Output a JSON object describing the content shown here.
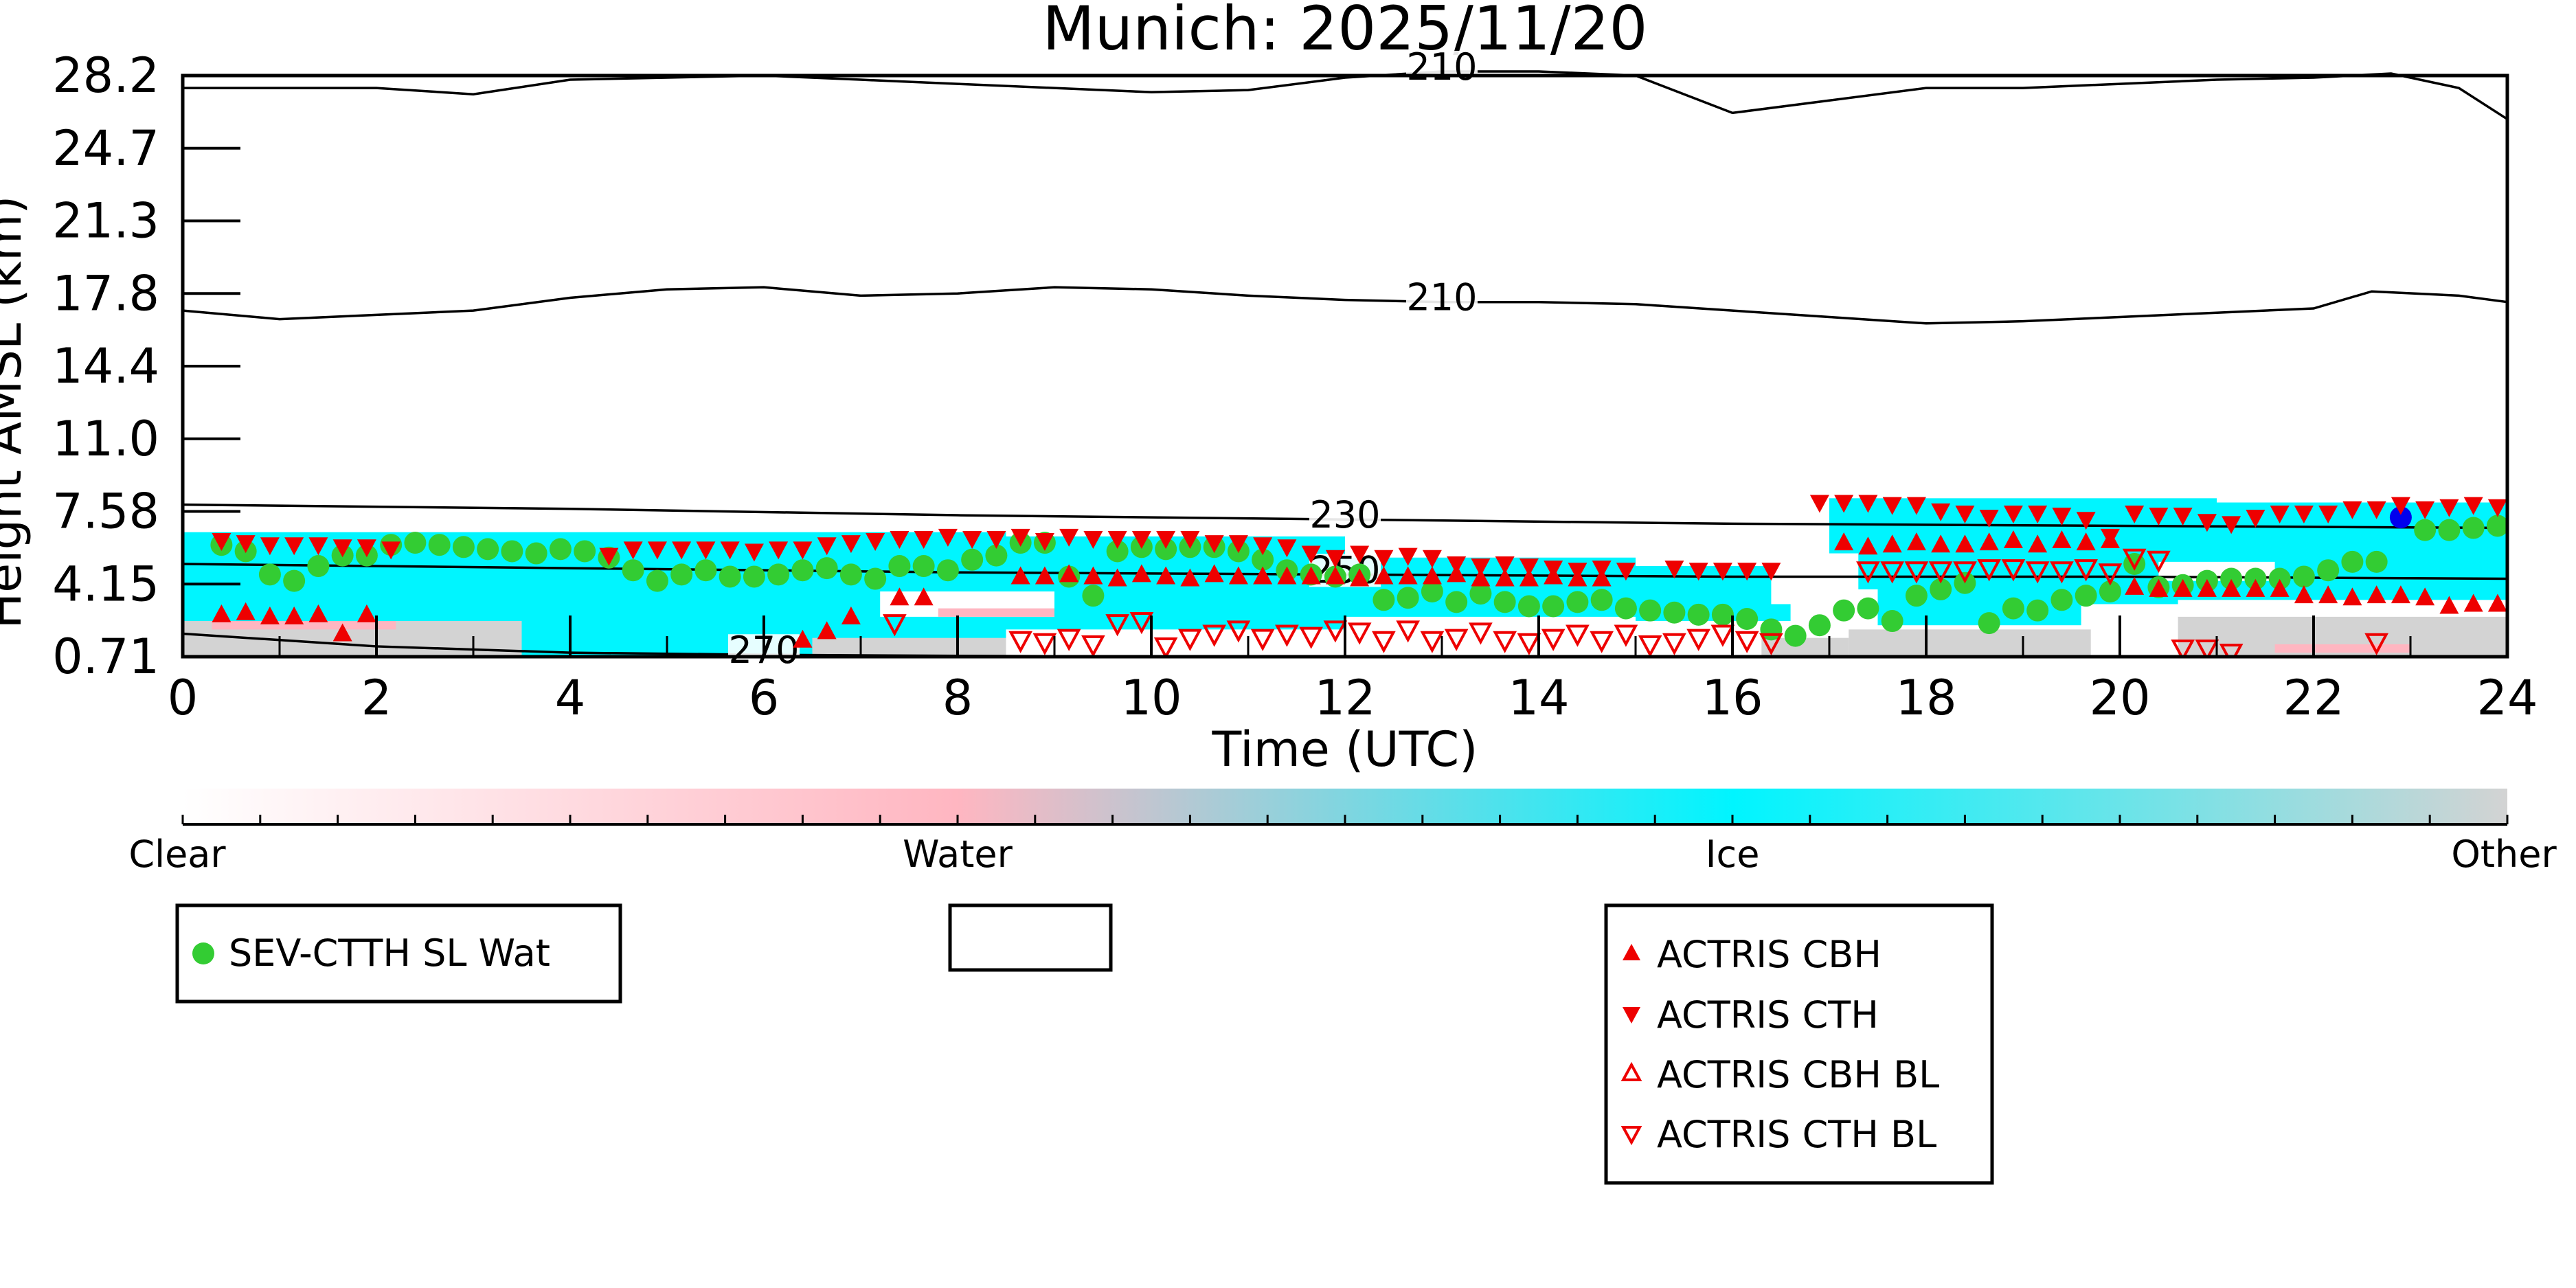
{
  "chart_data": {
    "type": "scatter",
    "title": "Munich: 2025/11/20",
    "xlabel": "Time (UTC)",
    "ylabel": "Height AMSL (km)",
    "xlim": [
      0,
      24
    ],
    "ylim": [
      0.71,
      28.2
    ],
    "x_ticks": [
      "0",
      "2",
      "4",
      "6",
      "8",
      "10",
      "12",
      "14",
      "16",
      "18",
      "20",
      "22",
      "24"
    ],
    "y_ticks": [
      "0.71",
      "4.15",
      "7.58",
      "11.0",
      "14.4",
      "17.8",
      "21.3",
      "24.7",
      "28.2"
    ],
    "y_tick_values": [
      0.71,
      4.15,
      7.58,
      11.0,
      14.4,
      17.8,
      21.3,
      24.7,
      28.2
    ],
    "colorbar": {
      "labels": [
        "Clear",
        "Water",
        "Ice",
        "Other"
      ],
      "colors": [
        "#ffffff",
        "#ffb6c1",
        "#00f5ff",
        "#d3d3d3"
      ]
    },
    "contours": [
      {
        "label": "210",
        "x": [
          0,
          1,
          2,
          3,
          4,
          5,
          6,
          7,
          8,
          9,
          10,
          11,
          12,
          13,
          14,
          15,
          16,
          17,
          18,
          19,
          20,
          21,
          22,
          22.8,
          23.5,
          24
        ],
        "y": [
          27.6,
          27.6,
          27.6,
          27.3,
          28.0,
          28.1,
          28.2,
          28.0,
          27.8,
          27.6,
          27.4,
          27.5,
          28.1,
          28.4,
          28.4,
          28.2,
          26.4,
          27.0,
          27.6,
          27.6,
          27.8,
          28.0,
          28.1,
          28.3,
          27.6,
          26.1
        ]
      },
      {
        "label": "210",
        "x": [
          0,
          1,
          2,
          3,
          4,
          5,
          6,
          7,
          8,
          9,
          10,
          11,
          12,
          13,
          14,
          15,
          16,
          17,
          18,
          19,
          20,
          21,
          22,
          22.6,
          23.5,
          24
        ],
        "y": [
          17.0,
          16.6,
          16.8,
          17.0,
          17.6,
          18.0,
          18.1,
          17.7,
          17.8,
          18.1,
          18.0,
          17.7,
          17.5,
          17.4,
          17.4,
          17.3,
          17.0,
          16.7,
          16.4,
          16.5,
          16.7,
          16.9,
          17.1,
          17.9,
          17.7,
          17.4
        ]
      },
      {
        "label": "230",
        "x": [
          0,
          4,
          8,
          12,
          16,
          20,
          24
        ],
        "y": [
          7.9,
          7.7,
          7.4,
          7.2,
          7.0,
          6.9,
          6.8
        ]
      },
      {
        "label": "250",
        "x": [
          0,
          4,
          8,
          12,
          16,
          20,
          24
        ],
        "y": [
          5.1,
          4.9,
          4.7,
          4.6,
          4.5,
          4.5,
          4.4
        ]
      },
      {
        "label": "270",
        "x": [
          0,
          2,
          4,
          6,
          8,
          10
        ],
        "y": [
          1.8,
          1.2,
          0.9,
          0.8,
          0.75,
          0.72
        ]
      }
    ],
    "series": [
      {
        "name": "SEV-CTTH SL Wat",
        "marker": "circle",
        "color": "#33cc33",
        "x": [
          0.4,
          0.65,
          0.9,
          1.15,
          1.4,
          1.65,
          1.9,
          2.15,
          2.4,
          2.65,
          2.9,
          3.15,
          3.4,
          3.65,
          3.9,
          4.15,
          4.4,
          4.65,
          4.9,
          5.15,
          5.4,
          5.65,
          5.9,
          6.15,
          6.4,
          6.65,
          6.9,
          7.15,
          7.4,
          7.65,
          7.9,
          8.15,
          8.4,
          8.65,
          8.9,
          9.15,
          9.4,
          9.65,
          9.9,
          10.15,
          10.4,
          10.65,
          10.9,
          11.15,
          11.4,
          11.65,
          11.9,
          12.15,
          12.4,
          12.65,
          12.9,
          13.15,
          13.4,
          13.65,
          13.9,
          14.15,
          14.4,
          14.65,
          14.9,
          15.15,
          15.4,
          15.65,
          15.9,
          16.15,
          16.4,
          16.65,
          16.9,
          17.15,
          17.4,
          17.65,
          17.9,
          18.15,
          18.4,
          18.65,
          18.9,
          19.15,
          19.4,
          19.65,
          19.9,
          20.15,
          20.4,
          20.65,
          20.9,
          21.15,
          21.4,
          21.65,
          21.9,
          22.15,
          22.4,
          22.65,
          23.15,
          23.4,
          23.65,
          23.9
        ],
        "y": [
          6.0,
          5.7,
          4.6,
          4.3,
          5.0,
          5.5,
          5.5,
          6.0,
          6.1,
          6.0,
          5.9,
          5.8,
          5.7,
          5.6,
          5.8,
          5.7,
          5.4,
          4.8,
          4.3,
          4.6,
          4.8,
          4.5,
          4.5,
          4.6,
          4.8,
          4.9,
          4.6,
          4.4,
          5.0,
          5.0,
          4.8,
          5.3,
          5.5,
          6.1,
          6.1,
          4.5,
          3.6,
          5.7,
          5.9,
          5.8,
          5.9,
          5.9,
          5.7,
          5.3,
          4.8,
          4.6,
          4.5,
          4.6,
          3.4,
          3.5,
          3.8,
          3.3,
          3.7,
          3.3,
          3.1,
          3.1,
          3.3,
          3.4,
          3.0,
          2.9,
          2.8,
          2.7,
          2.7,
          2.5,
          2.0,
          1.7,
          2.2,
          2.9,
          3.0,
          2.4,
          3.6,
          3.9,
          4.2,
          2.3,
          3.0,
          2.9,
          3.4,
          3.6,
          3.8,
          5.1,
          4.0,
          4.1,
          4.3,
          4.4,
          4.4,
          4.4,
          4.5,
          4.8,
          5.2,
          5.2,
          6.7,
          6.7,
          6.8,
          6.9
        ]
      },
      {
        "name": "",
        "marker": "circle",
        "color": "#0000ee",
        "x": [
          22.9
        ],
        "y": [
          7.3
        ]
      },
      {
        "name": "ACTRIS CBH",
        "marker": "triangle-up",
        "color": "#ee0000",
        "filled": true,
        "x": [
          0.4,
          0.65,
          0.9,
          1.15,
          1.4,
          1.65,
          1.9,
          6.4,
          6.65,
          6.9,
          7.4,
          7.65,
          8.65,
          8.9,
          9.15,
          9.4,
          9.65,
          9.9,
          10.15,
          10.4,
          10.65,
          10.9,
          11.15,
          11.4,
          11.65,
          11.9,
          12.15,
          12.4,
          12.65,
          12.9,
          13.15,
          13.4,
          13.65,
          13.9,
          14.15,
          14.4,
          14.65,
          17.15,
          17.4,
          17.65,
          17.9,
          18.15,
          18.4,
          18.65,
          18.9,
          19.15,
          19.4,
          19.65,
          19.9,
          20.15,
          20.4,
          20.65,
          20.9,
          21.15,
          21.4,
          21.65,
          21.9,
          22.15,
          22.4,
          22.65,
          22.9,
          23.15,
          23.4,
          23.65,
          23.9
        ],
        "y": [
          2.7,
          2.8,
          2.6,
          2.6,
          2.7,
          1.8,
          2.7,
          1.5,
          1.9,
          2.6,
          3.5,
          3.5,
          4.5,
          4.5,
          4.6,
          4.5,
          4.4,
          4.6,
          4.5,
          4.4,
          4.6,
          4.5,
          4.5,
          4.5,
          4.5,
          4.5,
          4.4,
          4.5,
          4.5,
          4.5,
          4.6,
          4.4,
          4.4,
          4.4,
          4.5,
          4.4,
          4.4,
          6.1,
          5.9,
          6.0,
          6.1,
          6.0,
          6.0,
          6.1,
          6.2,
          6.0,
          6.2,
          6.1,
          6.2,
          4.0,
          3.9,
          3.9,
          3.9,
          3.9,
          3.9,
          3.9,
          3.6,
          3.6,
          3.5,
          3.6,
          3.6,
          3.5,
          3.1,
          3.2,
          3.2
        ]
      },
      {
        "name": "ACTRIS CTH",
        "marker": "triangle-down",
        "color": "#ee0000",
        "filled": true,
        "x": [
          0.4,
          0.65,
          0.9,
          1.15,
          1.4,
          1.65,
          1.9,
          2.15,
          4.4,
          4.65,
          4.9,
          5.15,
          5.4,
          5.65,
          5.9,
          6.15,
          6.4,
          6.65,
          6.9,
          7.15,
          7.4,
          7.65,
          7.9,
          8.15,
          8.4,
          8.65,
          8.9,
          9.15,
          9.4,
          9.65,
          9.9,
          10.15,
          10.4,
          10.65,
          10.9,
          11.15,
          11.4,
          11.65,
          11.9,
          12.15,
          12.4,
          12.65,
          12.9,
          13.15,
          13.4,
          13.65,
          13.9,
          14.15,
          14.4,
          14.65,
          14.9,
          15.4,
          15.65,
          15.9,
          16.15,
          16.4,
          16.9,
          17.15,
          17.4,
          17.65,
          17.9,
          18.15,
          18.4,
          18.65,
          18.9,
          19.15,
          19.4,
          19.65,
          19.9,
          20.15,
          20.4,
          20.65,
          20.9,
          21.15,
          21.4,
          21.65,
          21.9,
          22.15,
          22.4,
          22.65,
          22.9,
          23.15,
          23.4,
          23.65,
          23.9
        ],
        "y": [
          6.2,
          6.1,
          6.0,
          6.0,
          6.0,
          5.9,
          5.9,
          5.8,
          5.5,
          5.8,
          5.8,
          5.8,
          5.8,
          5.8,
          5.7,
          5.8,
          5.8,
          6.0,
          6.1,
          6.2,
          6.3,
          6.3,
          6.4,
          6.3,
          6.3,
          6.4,
          6.2,
          6.4,
          6.3,
          6.3,
          6.3,
          6.3,
          6.3,
          6.1,
          6.1,
          6.0,
          5.9,
          5.6,
          5.4,
          5.6,
          5.4,
          5.5,
          5.4,
          5.1,
          5.0,
          5.1,
          5.0,
          4.9,
          4.8,
          4.9,
          4.8,
          4.9,
          4.8,
          4.8,
          4.8,
          4.8,
          8.0,
          8.0,
          8.0,
          7.9,
          7.9,
          7.6,
          7.5,
          7.3,
          7.5,
          7.5,
          7.4,
          7.2,
          6.4,
          7.5,
          7.4,
          7.4,
          7.1,
          7.0,
          7.3,
          7.5,
          7.5,
          7.5,
          7.7,
          7.7,
          7.9,
          7.7,
          7.8,
          7.9,
          7.8
        ]
      },
      {
        "name": "ACTRIS CBH BL",
        "marker": "triangle-up",
        "color": "#ee0000",
        "filled": false,
        "x": [],
        "y": []
      },
      {
        "name": "ACTRIS CTH BL",
        "marker": "triangle-down",
        "color": "#ee0000",
        "filled": false,
        "x": [
          7.35,
          8.65,
          8.9,
          9.15,
          9.4,
          9.65,
          9.9,
          10.15,
          10.4,
          10.65,
          10.9,
          11.15,
          11.4,
          11.65,
          11.9,
          12.15,
          12.4,
          12.65,
          12.9,
          13.15,
          13.4,
          13.65,
          13.9,
          14.15,
          14.4,
          14.65,
          14.9,
          15.15,
          15.4,
          15.65,
          15.9,
          16.15,
          16.4,
          17.4,
          17.65,
          17.9,
          18.15,
          18.4,
          18.65,
          18.9,
          19.15,
          19.4,
          19.65,
          19.9,
          20.15,
          20.4,
          20.65,
          20.9,
          21.15,
          22.65
        ],
        "y": [
          2.3,
          1.5,
          1.4,
          1.6,
          1.3,
          2.3,
          2.4,
          1.2,
          1.6,
          1.8,
          2.0,
          1.6,
          1.8,
          1.7,
          2.0,
          1.9,
          1.5,
          2.0,
          1.5,
          1.6,
          1.9,
          1.5,
          1.4,
          1.6,
          1.8,
          1.5,
          1.8,
          1.3,
          1.4,
          1.6,
          1.8,
          1.5,
          1.4,
          4.8,
          4.8,
          4.8,
          4.8,
          4.8,
          4.9,
          4.9,
          4.8,
          4.8,
          4.9,
          4.7,
          5.4,
          5.3,
          1.1,
          1.1,
          0.9,
          1.4
        ]
      }
    ]
  },
  "legend": {
    "box1": [
      {
        "label": "SEV-CTTH SL Wat",
        "marker": "circle",
        "color": "#33cc33"
      }
    ],
    "box2": [],
    "box3": [
      {
        "label": "ACTRIS CBH",
        "marker": "triangle-up",
        "filled": true,
        "color": "#ee0000"
      },
      {
        "label": "ACTRIS CTH",
        "marker": "triangle-down",
        "filled": true,
        "color": "#ee0000"
      },
      {
        "label": "ACTRIS CBH BL",
        "marker": "triangle-up",
        "filled": false,
        "color": "#ee0000"
      },
      {
        "label": "ACTRIS CTH BL",
        "marker": "triangle-down",
        "filled": false,
        "color": "#ee0000"
      }
    ]
  }
}
